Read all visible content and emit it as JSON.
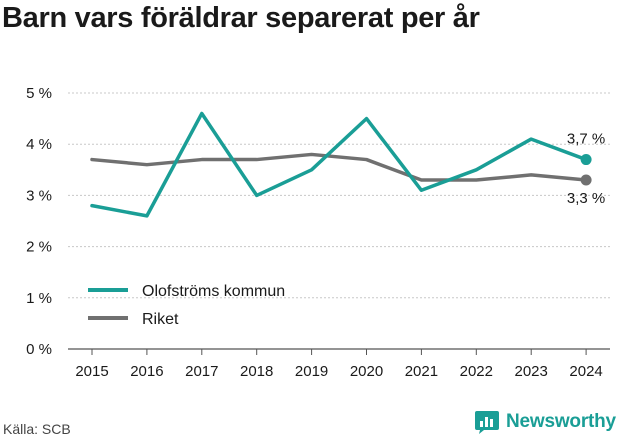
{
  "title": "Barn vars föräldrar separerat per år",
  "source": "Källa: SCB",
  "brand": "Newsworthy",
  "chart_data": {
    "type": "line",
    "x": [
      2015,
      2016,
      2017,
      2018,
      2019,
      2020,
      2021,
      2022,
      2023,
      2024
    ],
    "series": [
      {
        "name": "Olofströms kommun",
        "color": "#1a9e96",
        "values": [
          2.8,
          2.6,
          4.6,
          3.0,
          3.5,
          4.5,
          3.1,
          3.5,
          4.1,
          3.7
        ],
        "end_label": "3,7 %"
      },
      {
        "name": "Riket",
        "color": "#707070",
        "values": [
          3.7,
          3.6,
          3.7,
          3.7,
          3.8,
          3.7,
          3.3,
          3.3,
          3.4,
          3.3
        ],
        "end_label": "3,3 %"
      }
    ],
    "yticks": [
      0,
      1,
      2,
      3,
      4,
      5
    ],
    "ytick_labels": [
      "0 %",
      "1 %",
      "2 %",
      "3 %",
      "4 %",
      "5 %"
    ],
    "ylim": [
      0,
      5
    ],
    "grid": true,
    "legend_position": "lower-left"
  }
}
